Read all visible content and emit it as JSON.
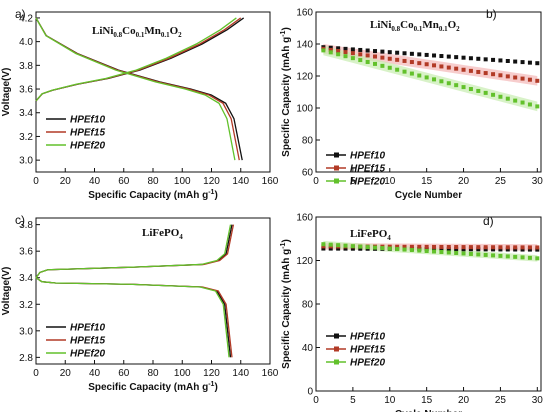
{
  "colors": {
    "HPEf10": "#111111",
    "HPEf15": "#b23a26",
    "HPEf20": "#62c12b",
    "band15": "#f4b8b8",
    "band20": "#c8ecb0"
  },
  "chart_data": [
    {
      "id": "a",
      "panel_label": "a)",
      "type": "line",
      "title": {
        "parts": [
          [
            "LiNi",
            ""
          ],
          [
            "0.8",
            "sub"
          ],
          [
            "Co",
            ""
          ],
          [
            "0.1",
            "sub"
          ],
          [
            "Mn",
            ""
          ],
          [
            "0.1",
            "sub"
          ],
          [
            "O",
            ""
          ],
          [
            "2",
            "sub"
          ]
        ]
      },
      "xlabel": "Specific Capacity (mAh g",
      "xlabel_sup": "-1",
      "xlabel_tail": ")",
      "ylabel": "Voltage(V)",
      "xlim": [
        0,
        160
      ],
      "ylim": [
        2.9,
        4.25
      ],
      "xticks": [
        0,
        20,
        40,
        60,
        80,
        100,
        120,
        140,
        160
      ],
      "yticks": [
        3.0,
        3.2,
        3.4,
        3.6,
        3.8,
        4.0,
        4.2
      ],
      "yticks_labels": [
        "3.0",
        "3.2",
        "3.4",
        "3.6",
        "3.8",
        "4.0",
        "4.2"
      ],
      "legend_position": "bottom-left",
      "series": [
        {
          "name": "HPEf10",
          "charge_cap": 142,
          "discharge_cap": 141
        },
        {
          "name": "HPEf15",
          "charge_cap": 140,
          "discharge_cap": 139
        },
        {
          "name": "HPEf20",
          "charge_cap": 137,
          "discharge_cap": 136
        }
      ],
      "charge_profile": [
        [
          0,
          3.5
        ],
        [
          0.03,
          3.56
        ],
        [
          0.08,
          3.59
        ],
        [
          0.2,
          3.64
        ],
        [
          0.35,
          3.69
        ],
        [
          0.5,
          3.76
        ],
        [
          0.65,
          3.86
        ],
        [
          0.8,
          3.98
        ],
        [
          0.92,
          4.1
        ],
        [
          1.0,
          4.2
        ]
      ],
      "discharge_profile": [
        [
          0,
          4.2
        ],
        [
          0.05,
          4.05
        ],
        [
          0.2,
          3.9
        ],
        [
          0.4,
          3.76
        ],
        [
          0.6,
          3.66
        ],
        [
          0.75,
          3.6
        ],
        [
          0.85,
          3.55
        ],
        [
          0.92,
          3.48
        ],
        [
          0.96,
          3.35
        ],
        [
          1.0,
          3.0
        ]
      ]
    },
    {
      "id": "b",
      "panel_label": "b)",
      "type": "scatter",
      "title": {
        "parts": [
          [
            "LiNi",
            ""
          ],
          [
            "0.8",
            "sub"
          ],
          [
            "Co",
            ""
          ],
          [
            "0.1",
            "sub"
          ],
          [
            "Mn",
            ""
          ],
          [
            "0.1",
            "sub"
          ],
          [
            "O",
            ""
          ],
          [
            "2",
            "sub"
          ]
        ]
      },
      "xlabel": "Cycle Number",
      "ylabel": "Specific Capacity (mAh g",
      "ylabel_sup": "-1",
      "ylabel_tail": ")",
      "xlim": [
        0,
        30.5
      ],
      "ylim": [
        60,
        160
      ],
      "xticks": [
        0,
        5,
        10,
        15,
        20,
        25,
        30
      ],
      "yticks": [
        60,
        80,
        100,
        120,
        140,
        160
      ],
      "legend_position": "bottom-left",
      "series": [
        {
          "name": "HPEf10",
          "start": 138,
          "end": 128
        },
        {
          "name": "HPEf15",
          "start": 137,
          "end": 117
        },
        {
          "name": "HPEf20",
          "start": 136,
          "end": 101
        }
      ]
    },
    {
      "id": "c",
      "panel_label": "c)",
      "type": "line",
      "title": {
        "parts": [
          [
            "LiFePO",
            ""
          ],
          [
            "4",
            "sub"
          ]
        ]
      },
      "xlabel": "Specific Capacity (mAh g",
      "xlabel_sup": "-1",
      "xlabel_tail": ")",
      "ylabel": "Voltage(V)",
      "xlim": [
        0,
        160
      ],
      "ylim": [
        2.75,
        3.85
      ],
      "xticks": [
        0,
        20,
        40,
        60,
        80,
        100,
        120,
        140,
        160
      ],
      "yticks": [
        2.8,
        3.0,
        3.2,
        3.4,
        3.6,
        3.8
      ],
      "yticks_labels": [
        "2.8",
        "3.0",
        "3.2",
        "3.4",
        "3.6",
        "3.8"
      ],
      "legend_position": "bottom-left",
      "series": [
        {
          "name": "HPEf10",
          "charge_cap": 134,
          "discharge_cap": 133
        },
        {
          "name": "HPEf15",
          "charge_cap": 135,
          "discharge_cap": 134
        },
        {
          "name": "HPEf20",
          "charge_cap": 133,
          "discharge_cap": 132
        }
      ],
      "charge_profile": [
        [
          0,
          3.4
        ],
        [
          0.02,
          3.44
        ],
        [
          0.06,
          3.46
        ],
        [
          0.5,
          3.48
        ],
        [
          0.85,
          3.5
        ],
        [
          0.93,
          3.53
        ],
        [
          0.97,
          3.58
        ],
        [
          1.0,
          3.8
        ]
      ],
      "discharge_profile": [
        [
          0,
          3.4
        ],
        [
          0.03,
          3.37
        ],
        [
          0.1,
          3.36
        ],
        [
          0.5,
          3.35
        ],
        [
          0.85,
          3.33
        ],
        [
          0.93,
          3.3
        ],
        [
          0.97,
          3.2
        ],
        [
          1.0,
          2.8
        ]
      ]
    },
    {
      "id": "d",
      "panel_label": "d)",
      "type": "scatter",
      "title": {
        "parts": [
          [
            "LiFePO",
            ""
          ],
          [
            "4",
            "sub"
          ]
        ]
      },
      "xlabel": "Cycle Number",
      "ylabel": "Specific Capacity (mAh g",
      "ylabel_sup": "-1",
      "ylabel_tail": ")",
      "xlim": [
        0,
        30.5
      ],
      "ylim": [
        0,
        160
      ],
      "xticks": [
        0,
        5,
        10,
        15,
        20,
        25,
        30
      ],
      "yticks": [
        0,
        40,
        80,
        120,
        160
      ],
      "legend_position": "bottom-left",
      "series": [
        {
          "name": "HPEf10",
          "start": 131,
          "end": 130
        },
        {
          "name": "HPEf15",
          "start": 133,
          "end": 132
        },
        {
          "name": "HPEf20",
          "start": 135,
          "end": 122
        }
      ]
    }
  ]
}
